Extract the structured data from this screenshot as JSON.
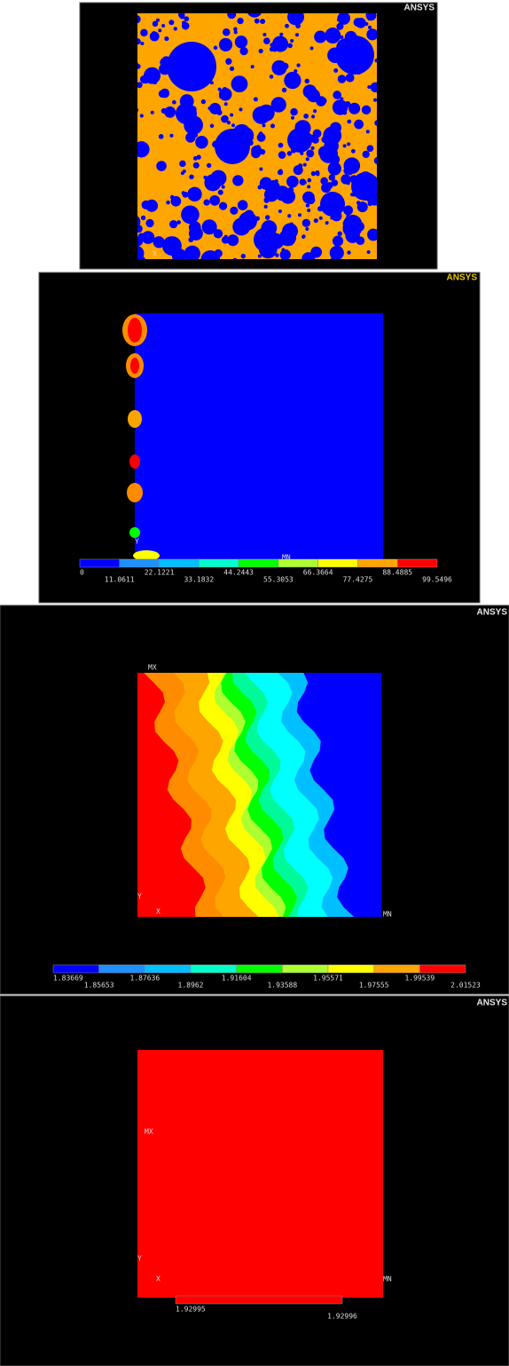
{
  "panels": [
    {
      "logo": "ANSYS",
      "axis_labels": [
        "X"
      ]
    },
    {
      "logo": "ANSYS",
      "markers": [
        "MN"
      ],
      "axis_labels": [
        "Y"
      ],
      "legend": [
        "0",
        "11.0611",
        "22.1221",
        "33.1832",
        "44.2443",
        "55.3053",
        "66.3664",
        "77.4275",
        "88.4885",
        "99.5496"
      ]
    },
    {
      "logo": "ANSYS",
      "markers": [
        "MX",
        "MN"
      ],
      "axis_labels": [
        "Y",
        "X"
      ],
      "legend": [
        "1.83669",
        "1.85653",
        "1.87636",
        "1.8962",
        "1.91604",
        "1.93588",
        "1.95571",
        "1.97555",
        "1.99539",
        "2.01523"
      ]
    },
    {
      "logo": "ANSYS",
      "markers": [
        "MX",
        "MN"
      ],
      "axis_labels": [
        "Y",
        "X"
      ],
      "legend": [
        "1.92995",
        "1.92996"
      ]
    }
  ]
}
